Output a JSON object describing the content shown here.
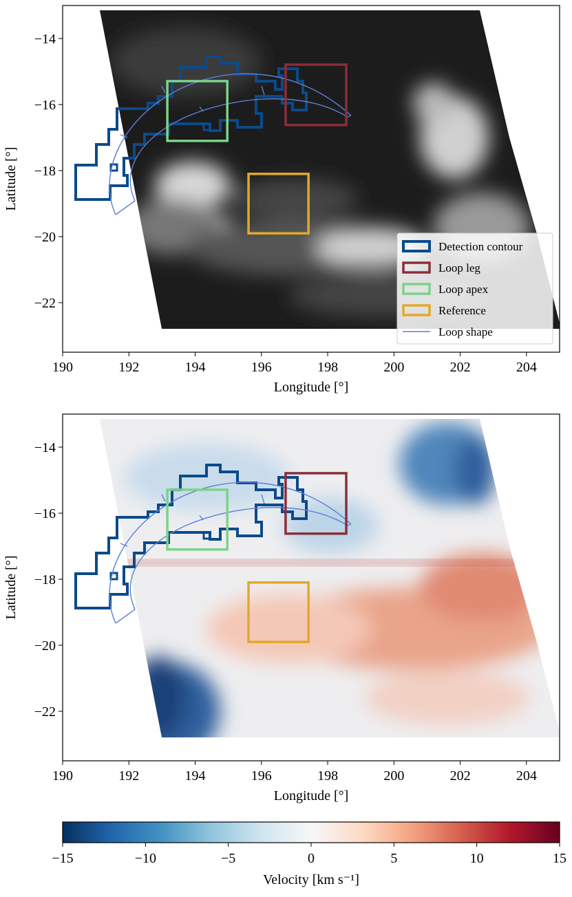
{
  "chart_data": [
    {
      "type": "image",
      "colormap": "gray",
      "xlabel": "Longitude [°]",
      "ylabel": "Latitude [°]",
      "xlim": [
        190,
        205
      ],
      "ylim": [
        -23.5,
        -13
      ],
      "xticks": [
        190,
        192,
        194,
        196,
        198,
        200,
        202,
        204
      ],
      "yticks": [
        {
          "value": -22,
          "label": "−22"
        },
        {
          "value": -20,
          "label": "−20"
        },
        {
          "value": -18,
          "label": "−18"
        },
        {
          "value": -16,
          "label": "−16"
        },
        {
          "value": -14,
          "label": "−14"
        }
      ],
      "legend": "lower right",
      "series": [
        {
          "name": "Detection contour",
          "color": "#0b4a8b"
        },
        {
          "name": "Loop leg",
          "color": "#8b2e3a",
          "lon": [
            196.73,
            198.56
          ],
          "lat": [
            -16.62,
            -14.79
          ]
        },
        {
          "name": "Loop apex",
          "color": "#7bd389",
          "lon": [
            193.16,
            194.97
          ],
          "lat": [
            -17.1,
            -15.29
          ]
        },
        {
          "name": "Reference",
          "color": "#e0a92c",
          "lon": [
            195.61,
            197.42
          ],
          "lat": [
            -19.9,
            -18.1
          ]
        },
        {
          "name": "Loop shape",
          "color": "#5a7fd6"
        }
      ]
    },
    {
      "type": "image",
      "colormap": "RdBu_r",
      "xlabel": "Longitude [°]",
      "ylabel": "Latitude [°]",
      "xlim": [
        190,
        205
      ],
      "ylim": [
        -23.5,
        -13
      ],
      "xticks": [
        190,
        192,
        194,
        196,
        198,
        200,
        202,
        204
      ],
      "yticks": [
        {
          "value": -22,
          "label": "−22"
        },
        {
          "value": -20,
          "label": "−20"
        },
        {
          "value": -18,
          "label": "−18"
        },
        {
          "value": -16,
          "label": "−16"
        },
        {
          "value": -14,
          "label": "−14"
        }
      ],
      "series": [
        {
          "color": "#0b4a8b"
        },
        {
          "color": "#8b2e3a",
          "lon": [
            196.73,
            198.56
          ],
          "lat": [
            -16.62,
            -14.79
          ]
        },
        {
          "color": "#7bd389",
          "lon": [
            193.16,
            194.97
          ],
          "lat": [
            -17.1,
            -15.29
          ]
        },
        {
          "color": "#e0a92c",
          "lon": [
            195.61,
            197.42
          ],
          "lat": [
            -19.9,
            -18.1
          ]
        },
        {
          "color": "#5a7fd6"
        }
      ]
    },
    {
      "type": "colorbar",
      "xlabel": "Velocity [km s⁻¹]",
      "xlim": [
        -15,
        15
      ],
      "xticks": [
        {
          "value": -15,
          "label": "−15"
        },
        {
          "value": -10,
          "label": "−10"
        },
        {
          "value": -5,
          "label": "−5"
        },
        0,
        5,
        10,
        15
      ],
      "colors": [
        "#053061",
        "#2166ac",
        "#4393c3",
        "#92c5de",
        "#d1e5f0",
        "#f7f7f7",
        "#fddbc7",
        "#f4a582",
        "#d6604d",
        "#b2182b",
        "#67001f"
      ]
    }
  ]
}
